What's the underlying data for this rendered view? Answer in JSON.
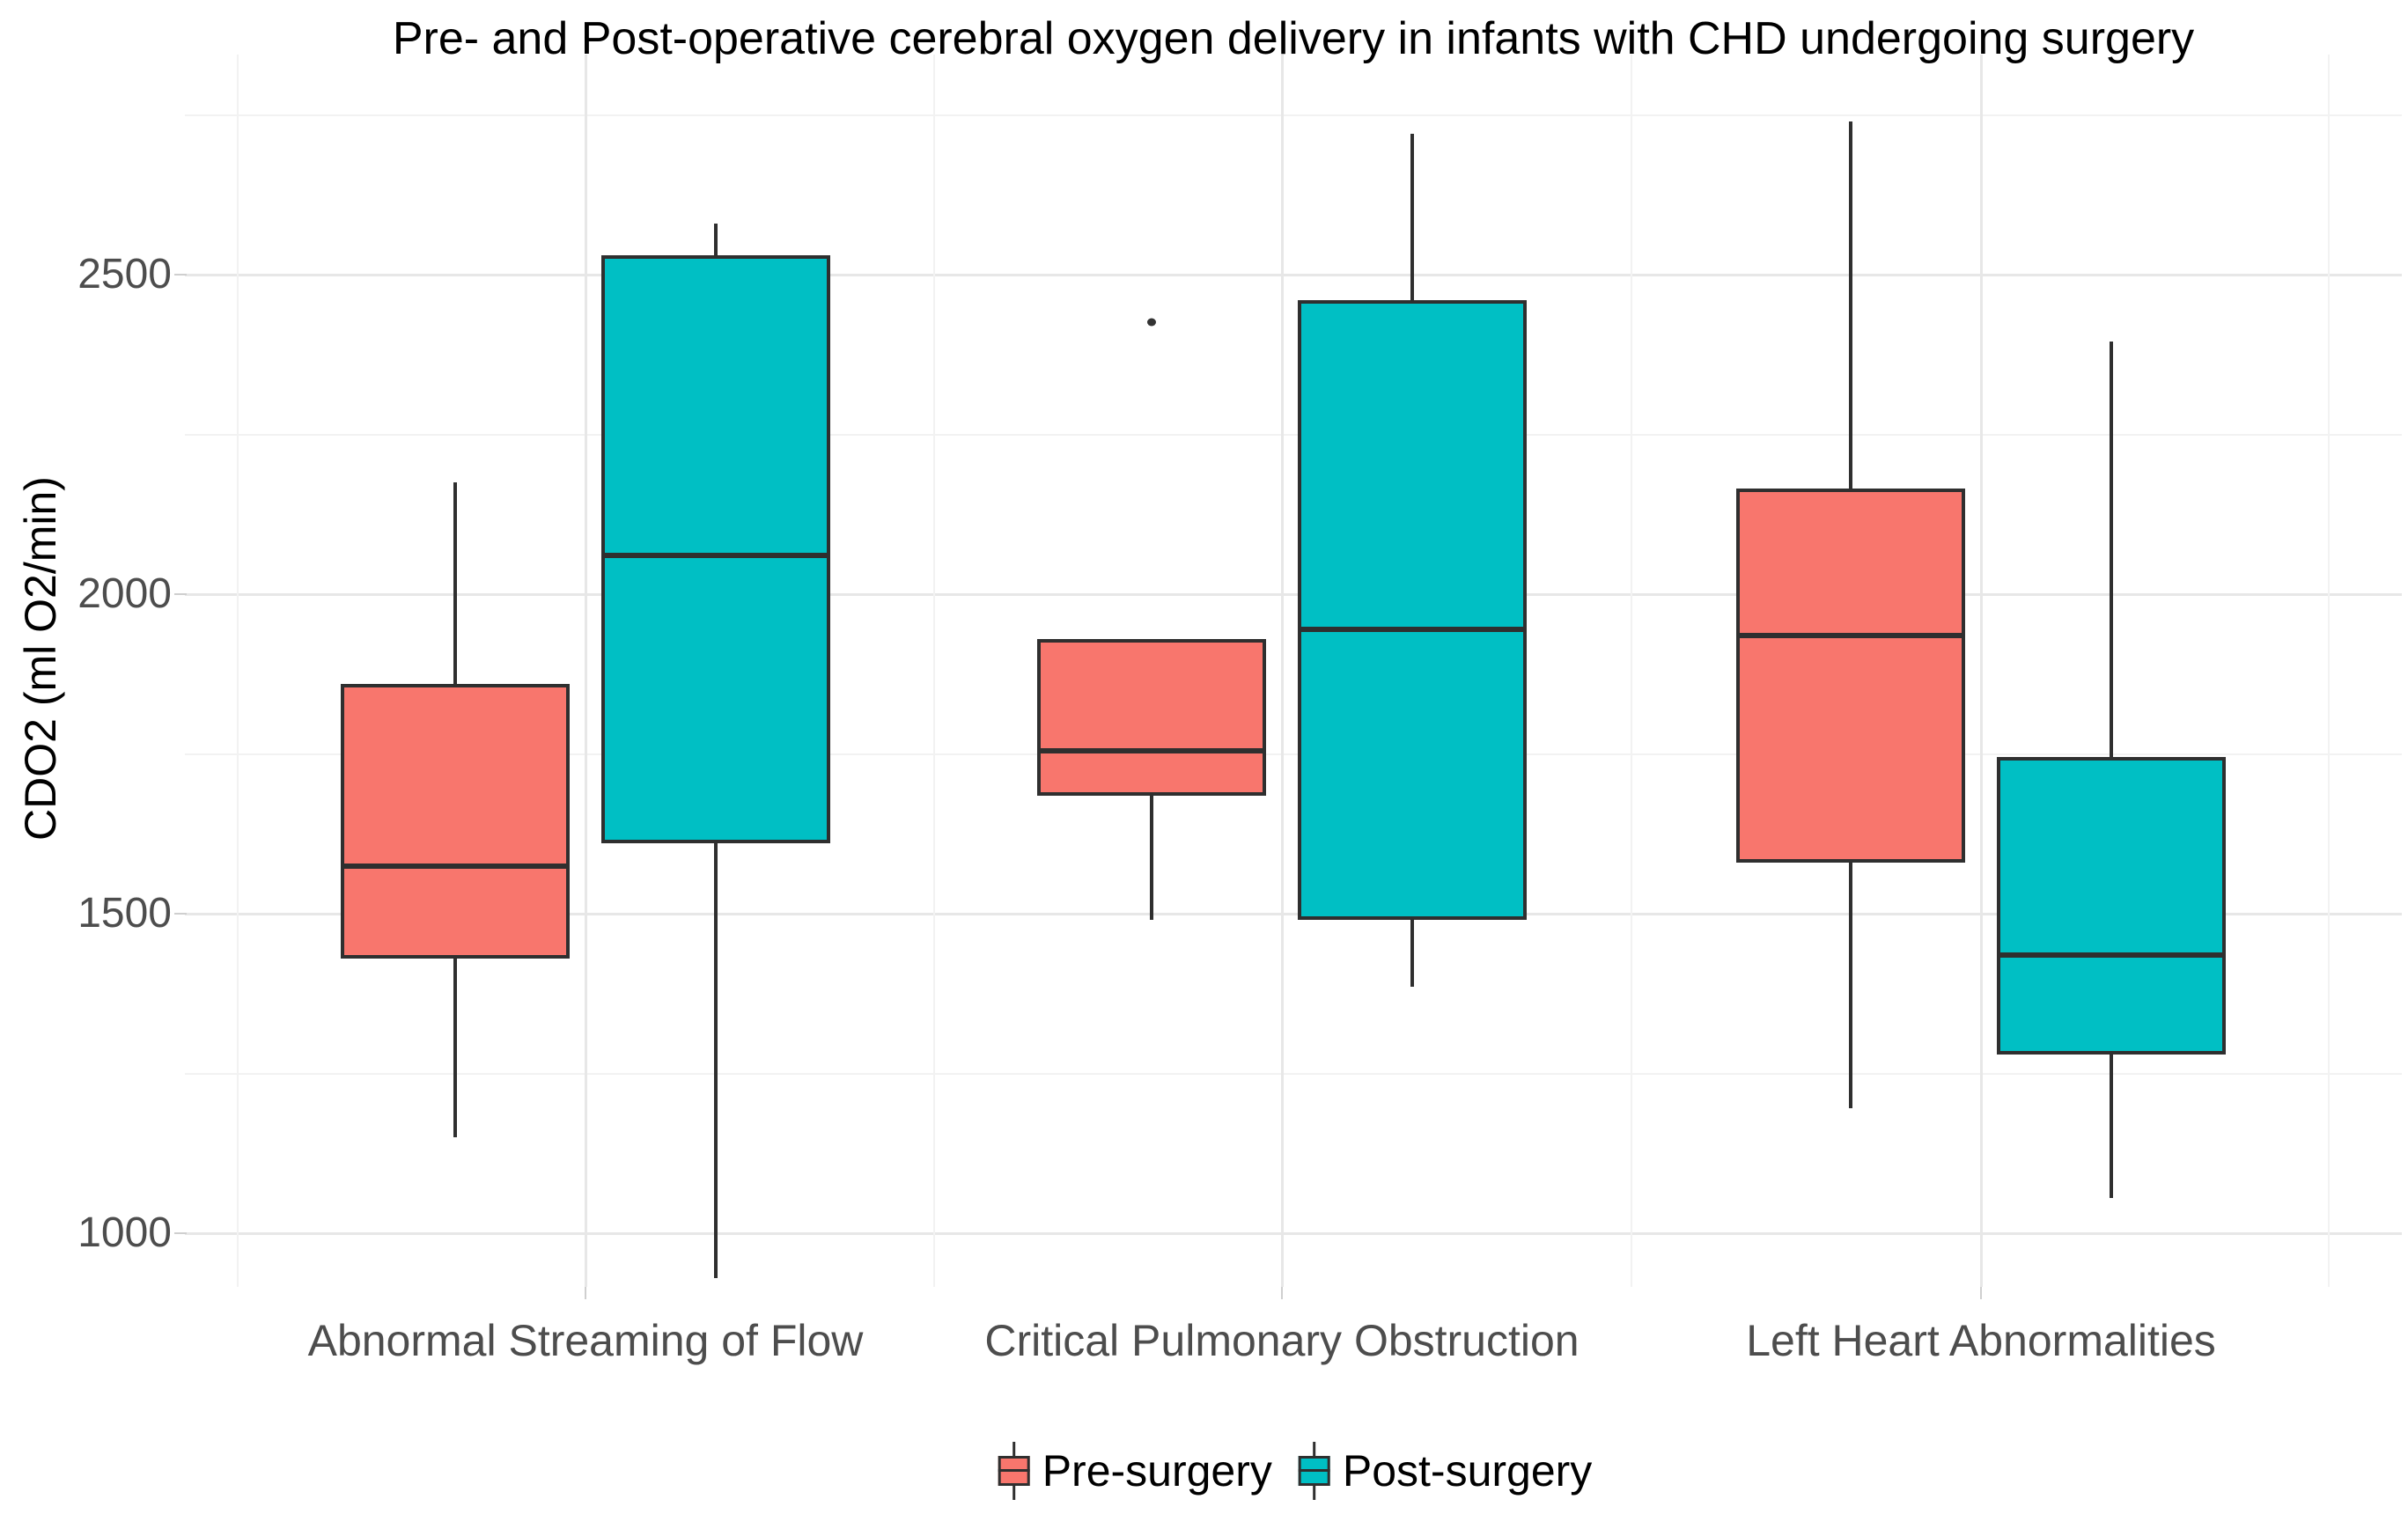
{
  "title": "Pre- and Post-operative cerebral oxygen delivery in infants with CHD undergoing surgery",
  "y_axis": {
    "label": "CDO2 (ml O2/min)",
    "major_ticks": [
      2500,
      2000,
      1500,
      1000
    ],
    "minor_gridlines": [
      2750,
      2250,
      1750,
      1250
    ]
  },
  "x_axis": {
    "categories": [
      "Abnormal Streaming of Flow",
      "Critical Pulmonary Obstruction",
      "Left Heart Abnormalities"
    ]
  },
  "legend": {
    "position": "bottom",
    "items": [
      {
        "label": "Pre-surgery",
        "color": "#F8766D"
      },
      {
        "label": "Post-surgery",
        "color": "#00BFC4"
      }
    ]
  },
  "colors": {
    "pre_fill": "#F8766D",
    "post_fill": "#00BFC4",
    "box_border": "#2f2f2f",
    "grid_major": "#e7e7e7",
    "grid_minor": "#f2f2f2",
    "tick_text": "#4d4d4d",
    "background": "#ffffff"
  },
  "chart_data": {
    "type": "boxplot",
    "title": "Pre- and Post-operative cerebral oxygen delivery in infants with CHD undergoing surgery",
    "xlabel": "",
    "ylabel": "CDO2 (ml O2/min)",
    "ylim": [
      916,
      2844
    ],
    "y_major_ticks": [
      1000,
      1500,
      2000,
      2500
    ],
    "grid": true,
    "legend_position": "bottom",
    "categories": [
      "Abnormal Streaming of Flow",
      "Critical Pulmonary Obstruction",
      "Left Heart Abnormalities"
    ],
    "series": [
      {
        "name": "Pre-surgery",
        "fill": "#F8766D",
        "boxes": [
          {
            "category": "Abnormal Streaming of Flow",
            "min": 1150,
            "q1": 1430,
            "median": 1575,
            "q3": 1860,
            "max": 2175,
            "outliers": []
          },
          {
            "category": "Critical Pulmonary Obstruction",
            "min": 1490,
            "q1": 1685,
            "median": 1755,
            "q3": 1930,
            "max": 1930,
            "outliers": [
              2425
            ]
          },
          {
            "category": "Left Heart Abnormalities",
            "min": 1195,
            "q1": 1580,
            "median": 1935,
            "q3": 2165,
            "max": 2740,
            "outliers": []
          }
        ]
      },
      {
        "name": "Post-surgery",
        "fill": "#00BFC4",
        "boxes": [
          {
            "category": "Abnormal Streaming of Flow",
            "min": 930,
            "q1": 1610,
            "median": 2060,
            "q3": 2530,
            "max": 2580,
            "outliers": []
          },
          {
            "category": "Critical Pulmonary Obstruction",
            "min": 1385,
            "q1": 1490,
            "median": 1945,
            "q3": 2460,
            "max": 2720,
            "outliers": []
          },
          {
            "category": "Left Heart Abnormalities",
            "min": 1055,
            "q1": 1280,
            "median": 1435,
            "q3": 1745,
            "max": 2395,
            "outliers": []
          }
        ]
      }
    ]
  }
}
